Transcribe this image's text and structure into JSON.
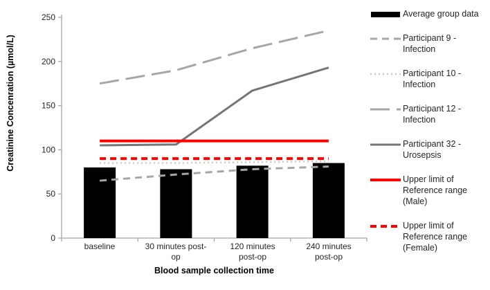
{
  "chart_data": {
    "type": "bar+line",
    "title": "",
    "xlabel": "Blood sample collection time",
    "ylabel": "Creatinine Concenration (µmol/L)",
    "categories": [
      "baseline",
      "30 minutes post-op",
      "120 minutes post-op",
      "240 minutes post-op"
    ],
    "x_labels_display": [
      "baseline",
      "30 minutes post-\nop",
      "120 minutes\npost-op",
      "240 minutes\npost-op"
    ],
    "ylim": [
      0,
      250
    ],
    "yticks": [
      0,
      50,
      100,
      150,
      200,
      250
    ],
    "grid": false,
    "legend_position": "right",
    "background_color": "#ffffff",
    "axis_color": "#a6a6a6",
    "series": [
      {
        "name": "Average group data",
        "type": "bar",
        "color": "#000000",
        "values": [
          80,
          78,
          82,
          85
        ]
      },
      {
        "name": "Participant 9 - Infection",
        "type": "line",
        "color": "#a6a6a6",
        "dash": "10,7",
        "width": 3,
        "values": [
          65,
          72,
          78,
          81
        ]
      },
      {
        "name": "Participant 10 - Infection",
        "type": "line",
        "color": "#c9c9c9",
        "dash": "2,4",
        "width": 2.5,
        "values": [
          85,
          85,
          86,
          87
        ]
      },
      {
        "name": "Participant 12 - Infection",
        "type": "line",
        "color": "#a6a6a6",
        "dash": "28,10",
        "width": 3,
        "values": [
          175,
          190,
          215,
          235
        ]
      },
      {
        "name": "Participant 32 - Urosepsis",
        "type": "line",
        "color": "#757575",
        "dash": "",
        "width": 3,
        "values": [
          105,
          106,
          167,
          193
        ]
      },
      {
        "name": "Upper limit of Reference range (Male)",
        "type": "line",
        "color": "#ff0000",
        "dash": "",
        "width": 4,
        "values": [
          110,
          110,
          110,
          110
        ]
      },
      {
        "name": "Upper limit of Reference range (Female)",
        "type": "line",
        "color": "#ff0000",
        "dash": "9,6",
        "width": 4,
        "values": [
          90,
          90,
          90,
          90
        ]
      }
    ]
  }
}
